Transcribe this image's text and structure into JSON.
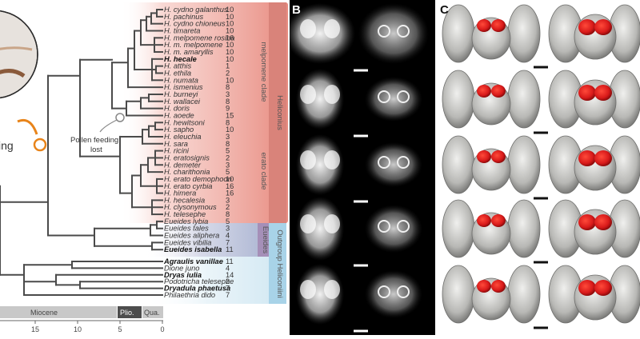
{
  "panels": {
    "a_label": "",
    "b_label": "B",
    "c_label": "C"
  },
  "species": [
    {
      "name": "H. cydno galanthus",
      "n": "10"
    },
    {
      "name": "H. pachinus",
      "n": "10"
    },
    {
      "name": "H. cydno chioneus",
      "n": "10"
    },
    {
      "name": "H. timareta",
      "n": "10"
    },
    {
      "name": "H. melpomene rosina",
      "n": "16"
    },
    {
      "name": "H. m. melpomene",
      "n": "10"
    },
    {
      "name": "H. m. amaryllis",
      "n": "10"
    },
    {
      "name": "H. hecale",
      "n": "10",
      "bold": true
    },
    {
      "name": "H. atthis",
      "n": "1"
    },
    {
      "name": "H. ethila",
      "n": "2"
    },
    {
      "name": "H. numata",
      "n": "10"
    },
    {
      "name": "H. ismenius",
      "n": "8"
    },
    {
      "name": "H. burneyi",
      "n": "3"
    },
    {
      "name": "H. wallacei",
      "n": "8"
    },
    {
      "name": "H. doris",
      "n": "9"
    },
    {
      "name": "H. aoede",
      "n": "15"
    },
    {
      "name": "H. hewitsoni",
      "n": "8"
    },
    {
      "name": "H. sapho",
      "n": "10"
    },
    {
      "name": "H. eleuchia",
      "n": "3"
    },
    {
      "name": "H. sara",
      "n": "8"
    },
    {
      "name": "H. ricini",
      "n": "5"
    },
    {
      "name": "H. eratosignis",
      "n": "2"
    },
    {
      "name": "H. demeter",
      "n": "3"
    },
    {
      "name": "H. charithonia",
      "n": "5"
    },
    {
      "name": "H. erato demophoon",
      "n": "10"
    },
    {
      "name": "H. erato cyrbia",
      "n": "16"
    },
    {
      "name": "H. himera",
      "n": "16"
    },
    {
      "name": "H. hecalesia",
      "n": "3"
    },
    {
      "name": "H. clysonymous",
      "n": "2"
    },
    {
      "name": "H. telesephe",
      "n": "8"
    },
    {
      "name": "Eueides lybia",
      "n": "5"
    },
    {
      "name": "Eueides tales",
      "n": "3"
    },
    {
      "name": "Eueides aliphera",
      "n": "4"
    },
    {
      "name": "Eueides vibilia",
      "n": "7"
    },
    {
      "name": "Eueides isabella",
      "n": "11",
      "bold": true
    },
    {
      "name": "Agraulis vanillae",
      "n": "11",
      "bold": true
    },
    {
      "name": "Dione juno",
      "n": "4"
    },
    {
      "name": "Dryas iulia",
      "n": "14",
      "bold": true
    },
    {
      "name": "Podotricha telesephe",
      "n": "2"
    },
    {
      "name": "Dryadula phaetusa",
      "n": "7",
      "bold": true
    },
    {
      "name": "Philaethria dido",
      "n": "7"
    }
  ],
  "clades": {
    "melpomene": "melpomene clade",
    "heliconius": "Heliconius",
    "erato": "erato clade",
    "eueides": "Eueides",
    "outgroup": "Outgroup Heliconiini"
  },
  "annotations": {
    "pollen": "Pollen feeding lost",
    "left_cut": "ing"
  },
  "timescale": {
    "miocene": "Miocene",
    "plio": "Plio.",
    "qua": "Qua.",
    "ticks": [
      "15",
      "10",
      "5",
      "0"
    ]
  },
  "colors": {
    "melpomene_band": "#e88b80",
    "heliconius_band": "#d9837a",
    "eueides_band": "#a58fb8",
    "outgroup_band": "#a8d3e8",
    "accent_orange": "#e8841a",
    "mushroom_red": "#d81a1a"
  }
}
